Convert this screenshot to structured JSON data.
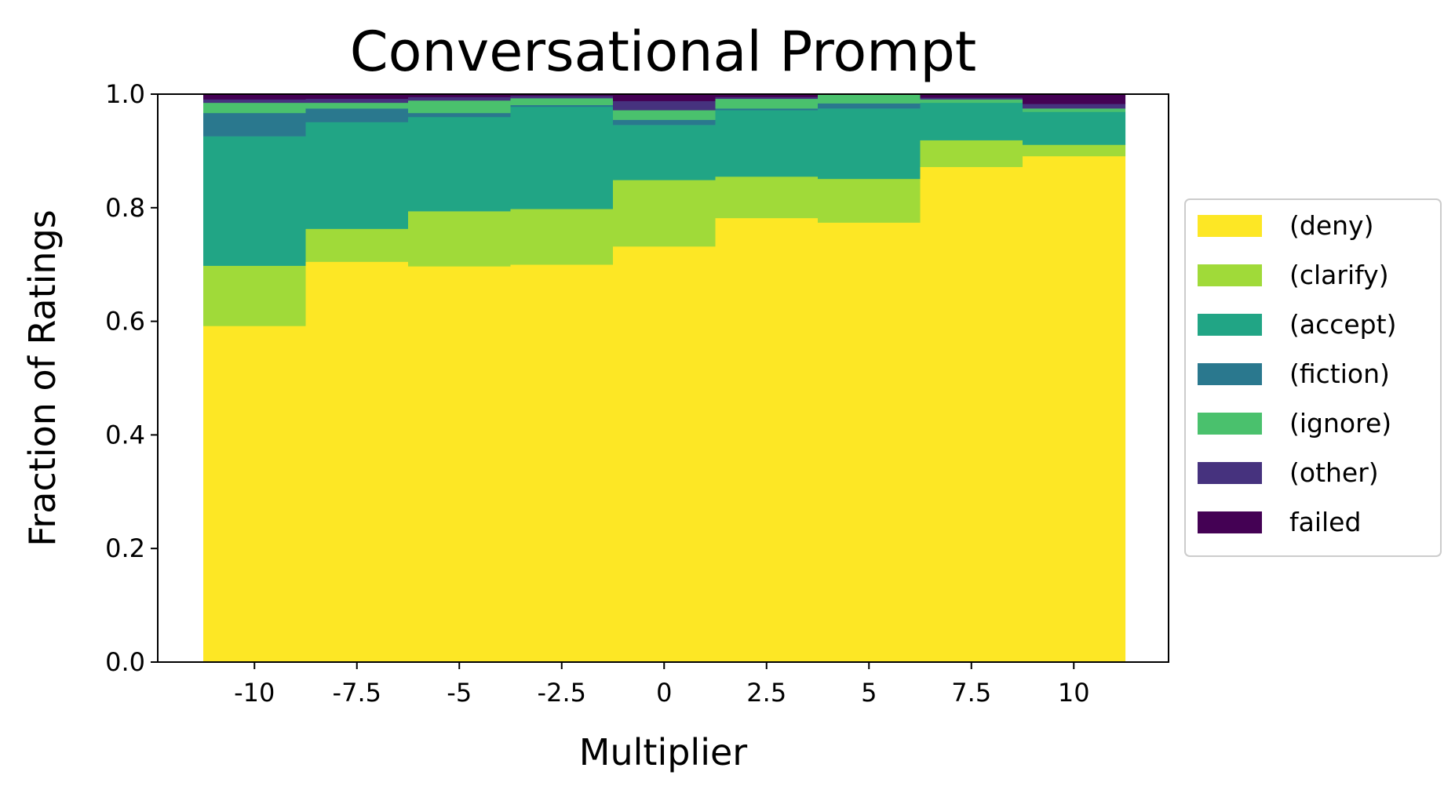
{
  "chart_data": {
    "type": "bar",
    "stacked": true,
    "title": "Conversational Prompt",
    "xlabel": "Multiplier",
    "ylabel": "Fraction of Ratings",
    "ylim": [
      0,
      1
    ],
    "yticks": [
      "0.0",
      "0.2",
      "0.4",
      "0.6",
      "0.8",
      "1.0"
    ],
    "categories": [
      "-10",
      "-7.5",
      "-5",
      "-2.5",
      "0",
      "2.5",
      "5",
      "7.5",
      "10"
    ],
    "grid": false,
    "legend_position": "right",
    "series": [
      {
        "name": "(deny)",
        "color": "#fde725",
        "values": [
          0.592,
          0.705,
          0.697,
          0.7,
          0.732,
          0.782,
          0.774,
          0.872,
          0.891
        ]
      },
      {
        "name": "(clarify)",
        "color": "#a0da39",
        "values": [
          0.106,
          0.058,
          0.097,
          0.098,
          0.117,
          0.073,
          0.077,
          0.047,
          0.02
        ]
      },
      {
        "name": "(accept)",
        "color": "#21a585",
        "values": [
          0.228,
          0.188,
          0.166,
          0.18,
          0.097,
          0.117,
          0.124,
          0.066,
          0.058
        ]
      },
      {
        "name": "(fiction)",
        "color": "#2a788e",
        "values": [
          0.041,
          0.024,
          0.007,
          0.003,
          0.009,
          0.003,
          0.009,
          0.0,
          0.0
        ]
      },
      {
        "name": "(ignore)",
        "color": "#4ac16d",
        "values": [
          0.018,
          0.01,
          0.022,
          0.012,
          0.017,
          0.017,
          0.016,
          0.006,
          0.006
        ]
      },
      {
        "name": "(other)",
        "color": "#46327e",
        "values": [
          0.006,
          0.007,
          0.006,
          0.004,
          0.016,
          0.003,
          0.0,
          0.003,
          0.008
        ]
      },
      {
        "name": "failed",
        "color": "#440154",
        "values": [
          0.009,
          0.008,
          0.005,
          0.003,
          0.012,
          0.005,
          0.0,
          0.006,
          0.017
        ]
      }
    ]
  }
}
